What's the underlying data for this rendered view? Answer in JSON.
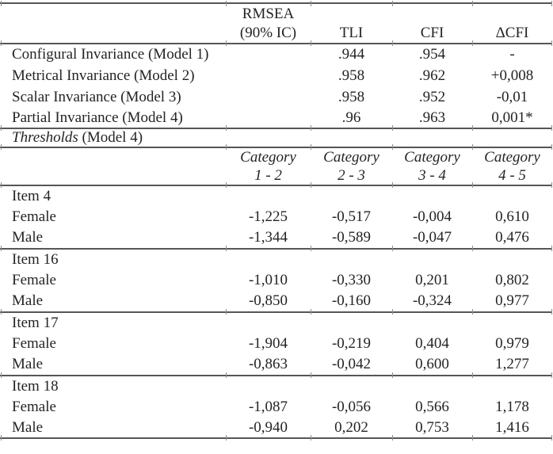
{
  "fit": {
    "header": {
      "rmsea_line1": "RMSEA",
      "rmsea_line2": "(90% IC)",
      "tli": "TLI",
      "cfi": "CFI",
      "dcfi": "ΔCFI"
    },
    "rows": [
      {
        "label": "Configural Invariance (Model 1)",
        "rmsea": "",
        "tli": ".944",
        "cfi": ".954",
        "dcfi": "-"
      },
      {
        "label": "Metrical Invariance (Model 2)",
        "rmsea": "",
        "tli": ".958",
        "cfi": ".962",
        "dcfi": "+0,008"
      },
      {
        "label": "Scalar Invariance (Model 3)",
        "rmsea": "",
        "tli": ".958",
        "cfi": ".952",
        "dcfi": "-0,01"
      },
      {
        "label": "Partial Invariance (Model 4)",
        "rmsea": "",
        "tli": ".96",
        "cfi": ".963",
        "dcfi": "0,001*"
      }
    ]
  },
  "thresholds": {
    "title_italic": "Thresholds",
    "title_rest": " (Model 4)",
    "category_cols": [
      {
        "top": "Category",
        "bottom": "1 - 2"
      },
      {
        "top": "Category",
        "bottom": "2 - 3"
      },
      {
        "top": "Category",
        "bottom": "3 - 4"
      },
      {
        "top": "Category",
        "bottom": "4 - 5"
      }
    ],
    "items": [
      {
        "name": "Item 4",
        "rows": [
          {
            "label": "Female",
            "values": [
              "-1,225",
              "-0,517",
              "-0,004",
              "0,610"
            ]
          },
          {
            "label": "Male",
            "values": [
              "-1,344",
              "-0,589",
              "-0,047",
              "0,476"
            ]
          }
        ]
      },
      {
        "name": "Item 16",
        "rows": [
          {
            "label": "Female",
            "values": [
              "-1,010",
              "-0,330",
              "0,201",
              "0,802"
            ]
          },
          {
            "label": "Male",
            "values": [
              "-0,850",
              "-0,160",
              "-0,324",
              "0,977"
            ]
          }
        ]
      },
      {
        "name": "Item 17",
        "rows": [
          {
            "label": "Female",
            "values": [
              "-1,904",
              "-0,219",
              "0,404",
              "0,979"
            ]
          },
          {
            "label": "Male",
            "values": [
              "-0,863",
              "-0,042",
              "0,600",
              "1,277"
            ]
          }
        ]
      },
      {
        "name": "Item 18",
        "rows": [
          {
            "label": "Female",
            "values": [
              "-1,087",
              "-0,056",
              "0,566",
              "1,178"
            ]
          },
          {
            "label": "Male",
            "values": [
              "-0,940",
              "0,202",
              "0,753",
              "1,416"
            ]
          }
        ]
      }
    ]
  }
}
